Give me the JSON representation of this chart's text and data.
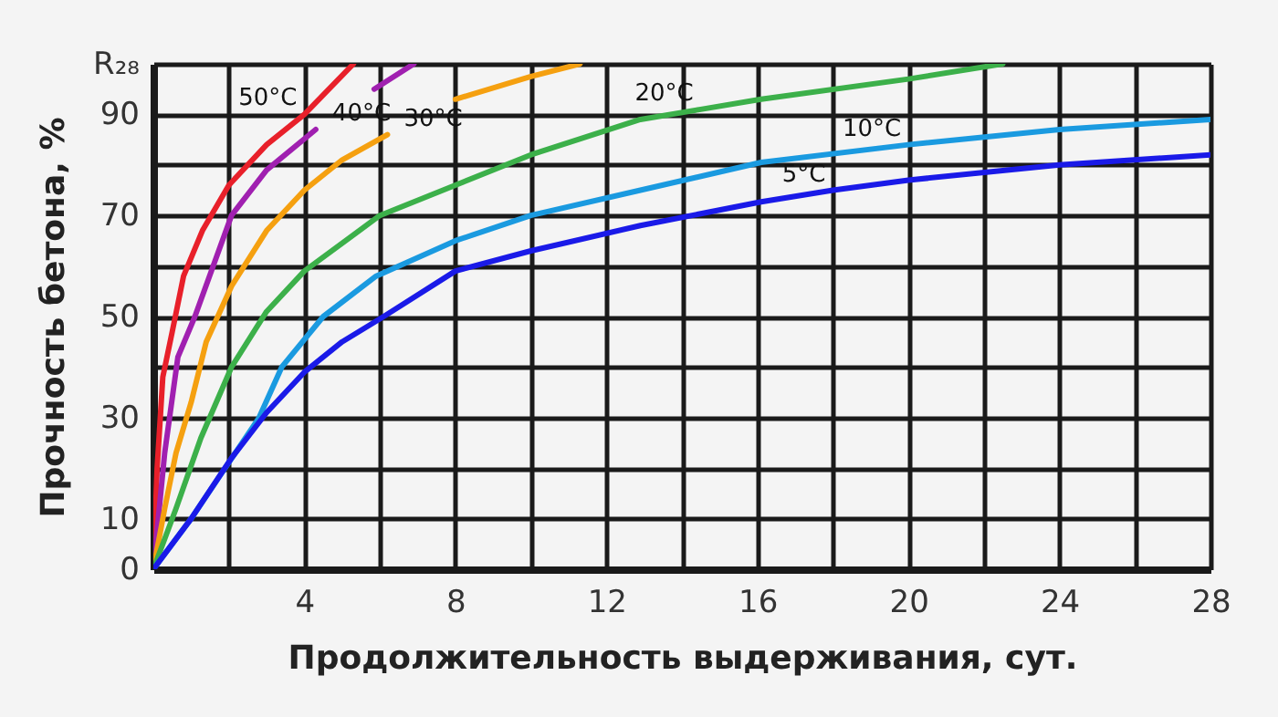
{
  "chart_data": {
    "type": "line",
    "xlabel": "Продолжительность выдерживания, сут.",
    "ylabel": "Прочность бетона, %",
    "xlim": [
      0,
      28
    ],
    "xticks": [
      {
        "value": 0,
        "label": null
      },
      {
        "value": 2,
        "label": null
      },
      4,
      {
        "value": 6,
        "label": null
      },
      8,
      {
        "value": 10,
        "label": null
      },
      12,
      {
        "value": 14,
        "label": null
      },
      16,
      {
        "value": 18,
        "label": null
      },
      20,
      {
        "value": 22,
        "label": null
      },
      24,
      {
        "value": 26,
        "label": null
      },
      28
    ],
    "ylim": [
      0,
      100
    ],
    "yticks": [
      0,
      10,
      {
        "value": 20,
        "label": null
      },
      30,
      {
        "value": 40,
        "label": null
      },
      50,
      {
        "value": 60,
        "label": null
      },
      70,
      {
        "value": 80,
        "label": null
      },
      90,
      {
        "value": 100,
        "label": "R₂₈"
      }
    ],
    "grid": true,
    "legend": false,
    "marker": "none",
    "line_style": "solid",
    "series": [
      {
        "color": "#e8202a",
        "x": [
          0,
          0.1,
          0.25,
          0.5,
          0.8,
          1.3,
          2,
          3,
          4,
          5.3
        ],
        "values": [
          0,
          20,
          38,
          47,
          58,
          67,
          76,
          84,
          90,
          100
        ]
      },
      {
        "color": "#a020b0",
        "x": [
          0,
          0.3,
          0.65,
          1.1,
          2.07,
          3,
          4.3,
          5,
          5.85,
          6.9
        ],
        "values": [
          0,
          23,
          42,
          50,
          70,
          79,
          87,
          null,
          95,
          100
        ]
      },
      {
        "color": "#f5a010",
        "x": [
          0,
          0.3,
          0.6,
          1.0,
          1.4,
          2.07,
          3,
          4,
          5,
          6.2,
          7,
          8,
          10,
          11.3
        ],
        "values": [
          0,
          12,
          23,
          33,
          45,
          56,
          67,
          75,
          81,
          86,
          null,
          93,
          97.5,
          100
        ]
      },
      {
        "color": "#3cb04a",
        "x": [
          0,
          0.6,
          1.26,
          2.07,
          3,
          4,
          6,
          8,
          10,
          12.9,
          14.5,
          16.1,
          20,
          22.5
        ],
        "values": [
          0,
          12,
          26,
          40,
          51,
          59,
          70,
          76,
          82,
          89,
          91,
          93,
          97,
          100
        ]
      },
      {
        "color": "#1a9ae0",
        "x": [
          0,
          1,
          1.9,
          2.8,
          3.4,
          4.5,
          5.9,
          8,
          10,
          12.9,
          16.1,
          20,
          24,
          28
        ],
        "values": [
          0,
          10,
          20,
          30,
          40,
          50,
          58,
          65,
          70,
          75,
          80.5,
          84,
          87,
          89
        ]
      },
      {
        "color": "#1a1ae8",
        "x": [
          0,
          1,
          2.07,
          3,
          4,
          5,
          6.1,
          8,
          10,
          12.9,
          16.1,
          18,
          20,
          24,
          28
        ],
        "values": [
          0,
          10,
          22,
          31,
          39,
          45,
          50,
          59,
          63,
          68,
          72.7,
          75,
          77,
          80,
          82
        ]
      }
    ],
    "annotations": [
      {
        "text": "50°C",
        "x": 4,
        "y": 90
      },
      {
        "text": "40°C",
        "x": 4.3,
        "y": 87
      },
      {
        "text": "30°C",
        "x": 6.2,
        "y": 86
      },
      {
        "text": "20°C",
        "x": 14.5,
        "y": 91
      },
      {
        "text": "10°C",
        "x": 20,
        "y": 84
      },
      {
        "text": "5°C",
        "x": 18,
        "y": 75
      }
    ]
  }
}
